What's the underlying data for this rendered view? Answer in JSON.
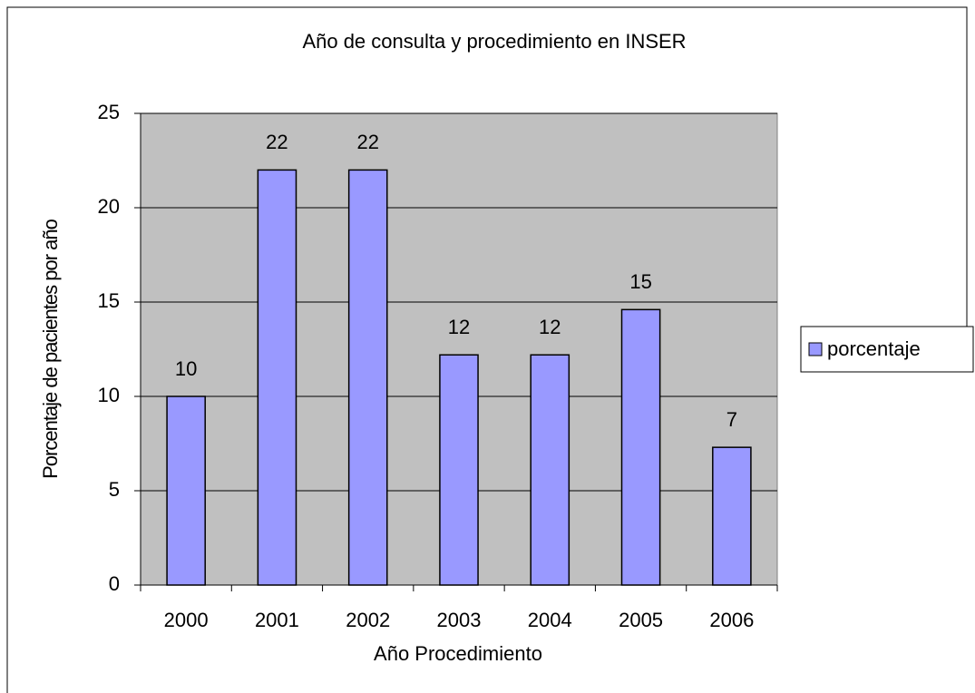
{
  "chart_data": {
    "type": "bar",
    "title": "Año de consulta  y procedimiento  en  INSER",
    "x_label": "Año Procedimiento",
    "y_label": "Porcentaje de  pacientes por año",
    "categories": [
      "2000",
      "2001",
      "2002",
      "2003",
      "2004",
      "2005",
      "2006"
    ],
    "series": [
      {
        "name": "porcentaje",
        "color": "#9999ff",
        "values": [
          10,
          22,
          22,
          12.2,
          12.2,
          14.6,
          7.3
        ],
        "value_labels": [
          "10",
          "22",
          "22",
          "12",
          "12",
          "15",
          "7"
        ]
      }
    ],
    "ylim": [
      0,
      25
    ],
    "yticks": [
      0,
      5,
      10,
      15,
      20,
      25
    ],
    "grid": true,
    "legend": "right"
  }
}
